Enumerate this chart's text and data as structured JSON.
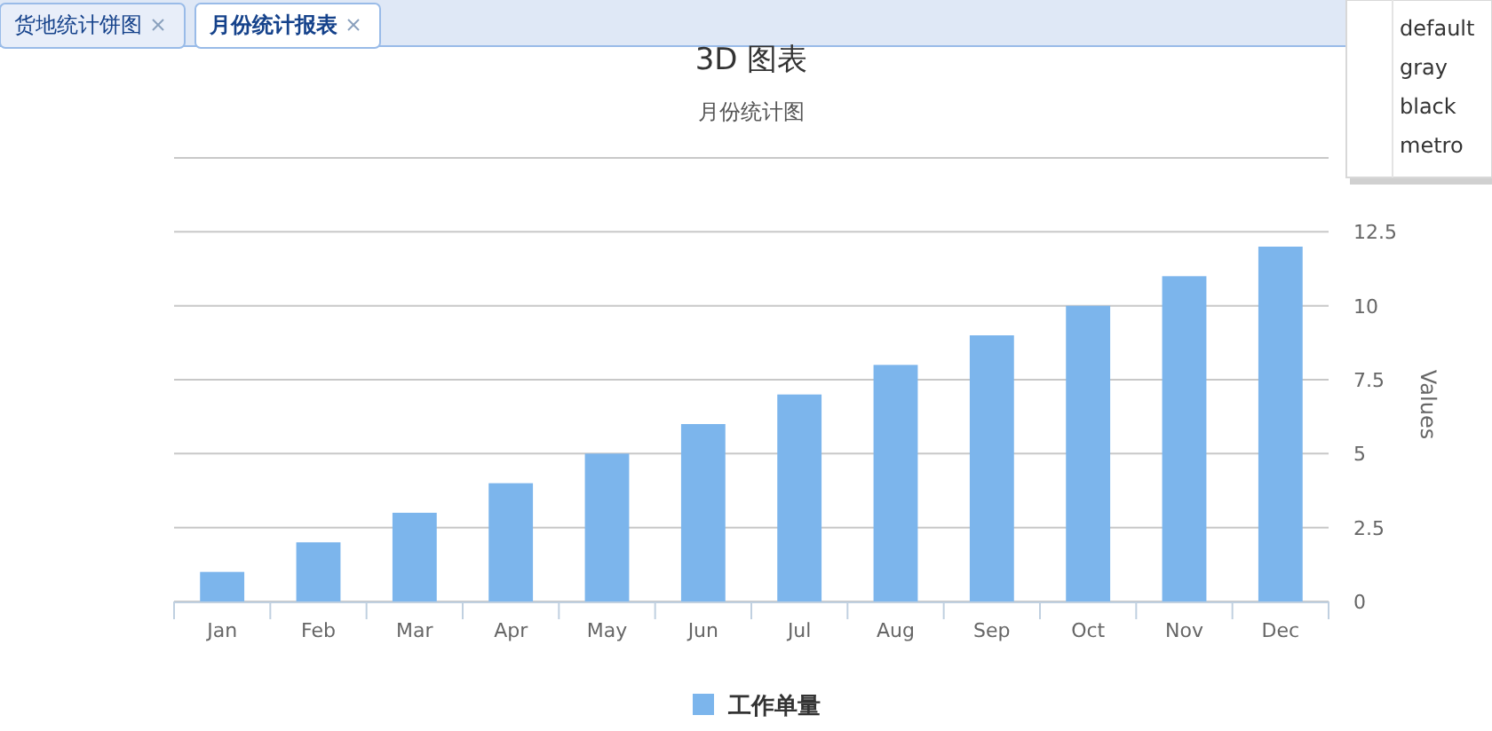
{
  "chart_data": {
    "type": "bar",
    "title": "3D 图表",
    "subtitle": "月份统计图",
    "ylabel": "Values",
    "categories": [
      "Jan",
      "Feb",
      "Mar",
      "Apr",
      "May",
      "Jun",
      "Jul",
      "Aug",
      "Sep",
      "Oct",
      "Nov",
      "Dec"
    ],
    "series": [
      {
        "name": "工作单量",
        "color": "#7cb5ec",
        "values": [
          1,
          2,
          3,
          4,
          5,
          6,
          7,
          8,
          9,
          10,
          11,
          12
        ]
      }
    ],
    "ylim": [
      0,
      15
    ],
    "yticks": [
      0,
      2.5,
      5,
      7.5,
      10,
      12.5,
      {
        "value": 15,
        "label": null
      }
    ],
    "grid": "y",
    "legend": "bottom",
    "annotations": [
      "货地统计饼图",
      "月份统计报表",
      "default",
      "gray",
      "black",
      "metro"
    ]
  }
}
